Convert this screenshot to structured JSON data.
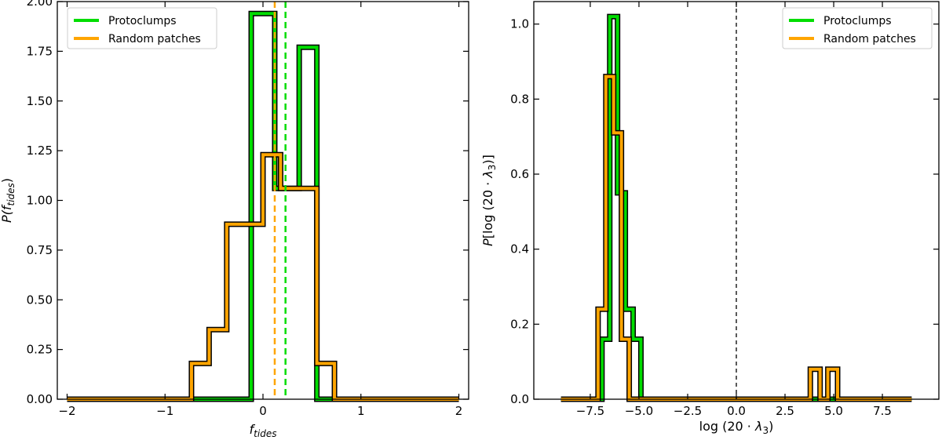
{
  "figure": {
    "panels": 2
  },
  "chart_data": [
    {
      "type": "histogram",
      "xlabel": "f_tides",
      "ylabel": "P(f_tides)",
      "xlim": [
        -2.1,
        2.1
      ],
      "ylim": [
        0,
        2.0
      ],
      "xticks": [
        -2,
        -1,
        0,
        1,
        2
      ],
      "xtick_labels": [
        "−2",
        "−1",
        "0",
        "1",
        "2"
      ],
      "yticks": [
        0,
        0.25,
        0.5,
        0.75,
        1.0,
        1.25,
        1.5,
        1.75,
        2.0
      ],
      "ytick_labels": [
        "0.00",
        "0.25",
        "0.50",
        "0.75",
        "1.00",
        "1.25",
        "1.50",
        "1.75",
        "2.00"
      ],
      "legend_position": "top-left",
      "grid": false,
      "series": [
        {
          "name": "Protoclumps",
          "color": "#00dd00",
          "bin_edges": [
            -2.0,
            -0.85,
            -0.12,
            0.12,
            0.37,
            0.55,
            2.0
          ],
          "values": [
            0.0,
            0.0,
            1.94,
            1.06,
            1.77,
            0.0
          ],
          "vline": 0.23
        },
        {
          "name": "Random patches",
          "color": "#ffa500",
          "bin_edges": [
            -2.0,
            -0.73,
            -0.55,
            -0.37,
            -0.18,
            0.0,
            0.18,
            0.37,
            0.55,
            0.73,
            2.0
          ],
          "values": [
            0.0,
            0.18,
            0.35,
            0.88,
            0.88,
            1.23,
            1.06,
            1.06,
            0.18,
            0.0
          ],
          "vline": 0.12
        }
      ]
    },
    {
      "type": "histogram",
      "xlabel": "log (20 · λ3)",
      "ylabel": "P[log (20 · λ3)]",
      "xlim": [
        -10.4,
        10.4
      ],
      "ylim": [
        0,
        1.06
      ],
      "xticks": [
        -7.5,
        -5.0,
        -2.5,
        0.0,
        2.5,
        5.0,
        7.5
      ],
      "xtick_labels": [
        "−7.5",
        "−5.0",
        "−2.5",
        "0.0",
        "2.5",
        "5.0",
        "7.5"
      ],
      "yticks": [
        0,
        0.2,
        0.4,
        0.6,
        0.8,
        1.0
      ],
      "ytick_labels": [
        "0.0",
        "0.2",
        "0.4",
        "0.6",
        "0.8",
        "1.0"
      ],
      "legend_position": "top-right",
      "grid": false,
      "series": [
        {
          "name": "Protoclumps",
          "color": "#00dd00",
          "bin_edges": [
            -9.0,
            -6.9,
            -6.5,
            -6.1,
            -5.7,
            -5.3,
            -4.9,
            9.0
          ],
          "values": [
            0.0,
            0.16,
            1.02,
            0.55,
            0.24,
            0.16,
            0.0
          ],
          "vline": 0.0
        },
        {
          "name": "Random patches",
          "color": "#ffa500",
          "bin_edges": [
            -9.0,
            -7.1,
            -6.7,
            -6.3,
            -5.9,
            -5.5,
            -5.2,
            3.8,
            4.3,
            4.7,
            5.2,
            9.0
          ],
          "values": [
            0.0,
            0.24,
            0.86,
            0.71,
            0.16,
            0.0,
            0.0,
            0.08,
            0.0,
            0.08,
            0.0
          ],
          "vline": 0.0
        }
      ]
    }
  ]
}
